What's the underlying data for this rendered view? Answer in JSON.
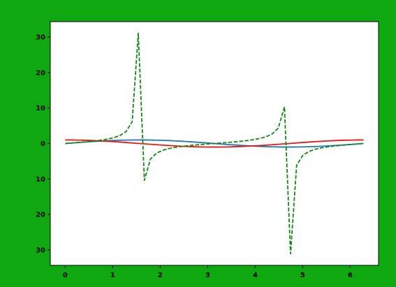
{
  "figure": {
    "background": "#10a810"
  },
  "chart_data": {
    "type": "line",
    "title": "",
    "xlabel": "",
    "ylabel": "",
    "xlim": [
      -0.3142,
      6.5973
    ],
    "ylim": [
      -34.35,
      34.35
    ],
    "grid": false,
    "legend": null,
    "plot_background": "#ffffff",
    "x_ticks": [
      0,
      1,
      2,
      3,
      4,
      5,
      6
    ],
    "x_tick_labels": [
      "0",
      "1",
      "2",
      "3",
      "4",
      "5",
      "6"
    ],
    "y_ticks": [
      30,
      20,
      10,
      0,
      -10,
      -20,
      -30
    ],
    "y_tick_labels": [
      "30",
      "20",
      "10",
      "0",
      "10",
      "20",
      "30"
    ],
    "x": [
      0,
      0.1282,
      0.2565,
      0.3847,
      0.5129,
      0.6411,
      0.7694,
      0.8976,
      1.0258,
      1.1541,
      1.2823,
      1.4105,
      1.5387,
      1.667,
      1.7952,
      1.9234,
      2.0517,
      2.1799,
      2.3081,
      2.4363,
      2.5646,
      2.6928,
      2.821,
      2.9493,
      3.0775,
      3.2057,
      3.3339,
      3.4622,
      3.5904,
      3.7186,
      3.8468,
      3.9751,
      4.1033,
      4.2315,
      4.3598,
      4.488,
      4.6162,
      4.7444,
      4.8727,
      5.0009,
      5.1291,
      5.2574,
      5.3856,
      5.5138,
      5.642,
      5.7703,
      5.8985,
      6.0267,
      6.155,
      6.2832
    ],
    "series": [
      {
        "color": "#1f77b4",
        "dash": "solid",
        "values": [
          0,
          0.1279,
          0.2537,
          0.3753,
          0.4907,
          0.5981,
          0.6956,
          0.7818,
          0.8551,
          0.9145,
          0.9587,
          0.9871,
          0.9995,
          0.9952,
          0.9749,
          0.9382,
          0.8869,
          0.8208,
          0.7413,
          0.6485,
          0.5456,
          0.4332,
          0.3138,
          0.1898,
          0.0641,
          -0.0641,
          -0.1907,
          -0.3138,
          -0.4332,
          -0.5456,
          -0.6485,
          -0.7413,
          -0.8208,
          -0.8869,
          -0.9382,
          -0.9749,
          -0.9952,
          -0.9995,
          -0.9871,
          -0.9587,
          -0.9145,
          -0.8551,
          -0.7818,
          -0.6956,
          -0.5981,
          -0.4907,
          -0.3753,
          -0.2537,
          -0.1279,
          0
        ]
      },
      {
        "color": "#e8170f",
        "dash": "solid",
        "values": [
          1,
          0.9918,
          0.9673,
          0.9269,
          0.8713,
          0.8014,
          0.7183,
          0.6235,
          0.5184,
          0.4047,
          0.2845,
          0.1601,
          0.0321,
          -0.0961,
          -0.2225,
          -0.346,
          -0.4619,
          -0.5712,
          -0.6712,
          -0.7611,
          -0.838,
          -0.9013,
          -0.9495,
          -0.9818,
          -0.9979,
          -0.9979,
          -0.9816,
          -0.9495,
          -0.9013,
          -0.838,
          -0.7611,
          -0.6712,
          -0.5712,
          -0.4619,
          -0.346,
          -0.2225,
          -0.0961,
          0.0321,
          0.1601,
          0.2845,
          0.4047,
          0.5184,
          0.6235,
          0.7183,
          0.8014,
          0.8713,
          0.9269,
          0.9673,
          0.9918,
          1
        ]
      },
      {
        "color": "#128a12",
        "dash": "dashed",
        "values": [
          0,
          0.129,
          0.2623,
          0.4049,
          0.5632,
          0.7463,
          0.9684,
          1.2539,
          1.6495,
          2.2597,
          3.3693,
          6.166,
          31.1,
          -10.3519,
          -4.3818,
          -2.7116,
          -1.92,
          -1.4369,
          -1.1044,
          -0.852,
          -0.651,
          -0.4806,
          -0.3305,
          -0.1933,
          -0.0642,
          0.0642,
          0.1933,
          0.3305,
          0.4806,
          0.651,
          0.852,
          1.1044,
          1.4369,
          1.92,
          2.7116,
          4.3818,
          10.3519,
          -31.1,
          -6.166,
          -3.3693,
          -2.2597,
          -1.6495,
          -1.2539,
          -0.9684,
          -0.7463,
          -0.5632,
          -0.4049,
          -0.2623,
          -0.129,
          0
        ]
      }
    ]
  }
}
